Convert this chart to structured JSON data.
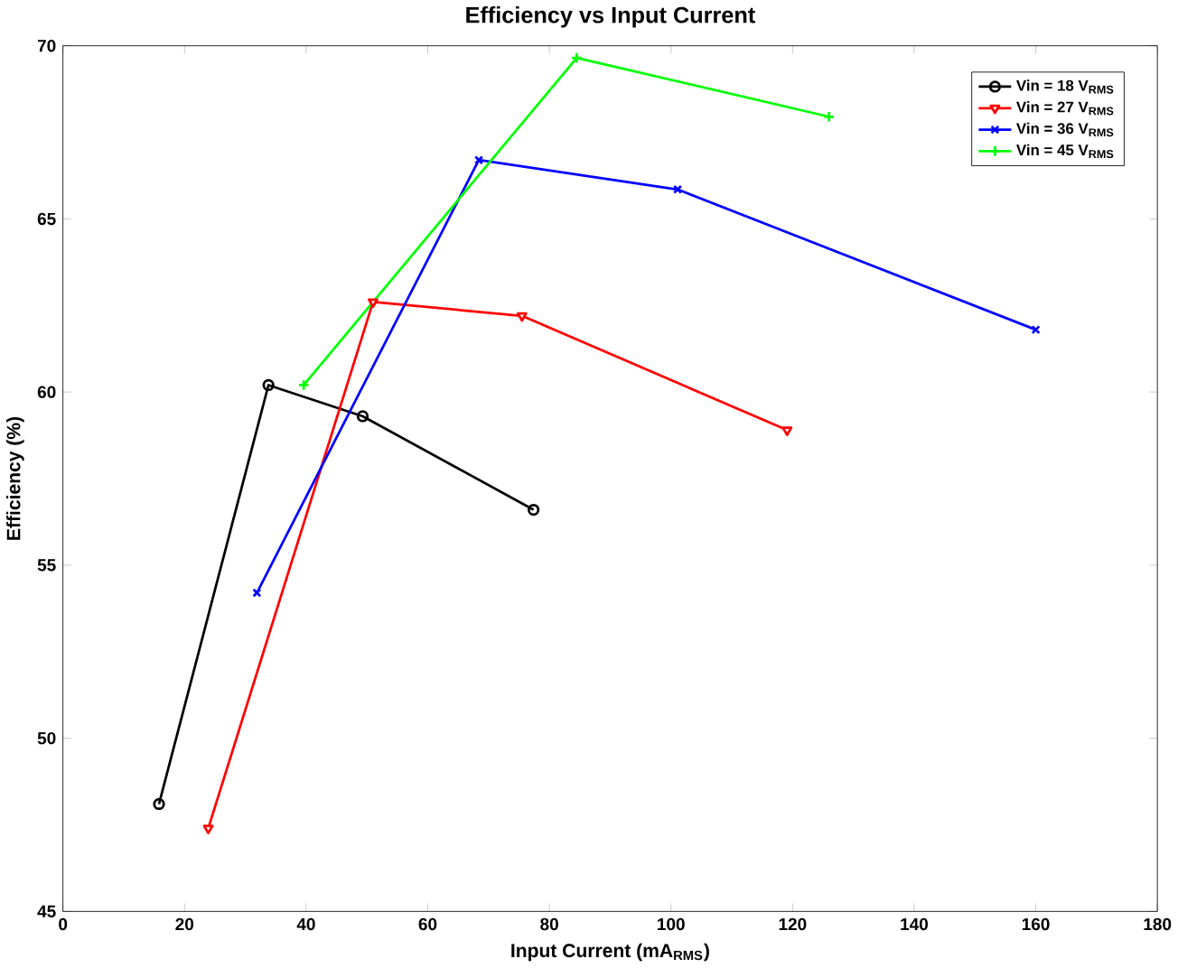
{
  "chart_data": {
    "type": "line",
    "title": "Efficiency vs Input Current",
    "xlabel": "Input Current (mA$_{RMS}$)",
    "ylabel": "Efficiency (%)",
    "xlim": [
      0,
      180
    ],
    "xticks": [
      0,
      20,
      40,
      60,
      80,
      100,
      120,
      140,
      160,
      180
    ],
    "ylim": [
      45,
      70
    ],
    "yticks": [
      45,
      50,
      55,
      60,
      65,
      70
    ],
    "grid": false,
    "legend": "top right",
    "series": [
      {
        "name": "Vin = 18 V$_{RMS}$",
        "color": "#000000",
        "marker": "circle",
        "x": [
          15.8,
          33.8,
          49.3,
          77.4
        ],
        "values": [
          48.1,
          60.2,
          59.3,
          56.6
        ]
      },
      {
        "name": "Vin = 27 V$_{RMS}$",
        "color": "#ff0000",
        "marker": "triangle",
        "x": [
          23.9,
          51,
          75.5,
          119.1
        ],
        "values": [
          47.4,
          62.6,
          62.2,
          58.9
        ]
      },
      {
        "name": "Vin = 36 V$_{RMS}$",
        "color": "#0000ff",
        "marker": "cross",
        "x": [
          31.9,
          68.4,
          101.1,
          160
        ],
        "values": [
          54.2,
          66.7,
          65.85,
          61.8
        ]
      },
      {
        "name": "Vin = 45 V$_{RMS}$",
        "color": "#00ff00",
        "marker": "plus",
        "x": [
          39.6,
          84.5,
          126
        ],
        "values": [
          60.2,
          69.65,
          67.95
        ]
      }
    ]
  }
}
